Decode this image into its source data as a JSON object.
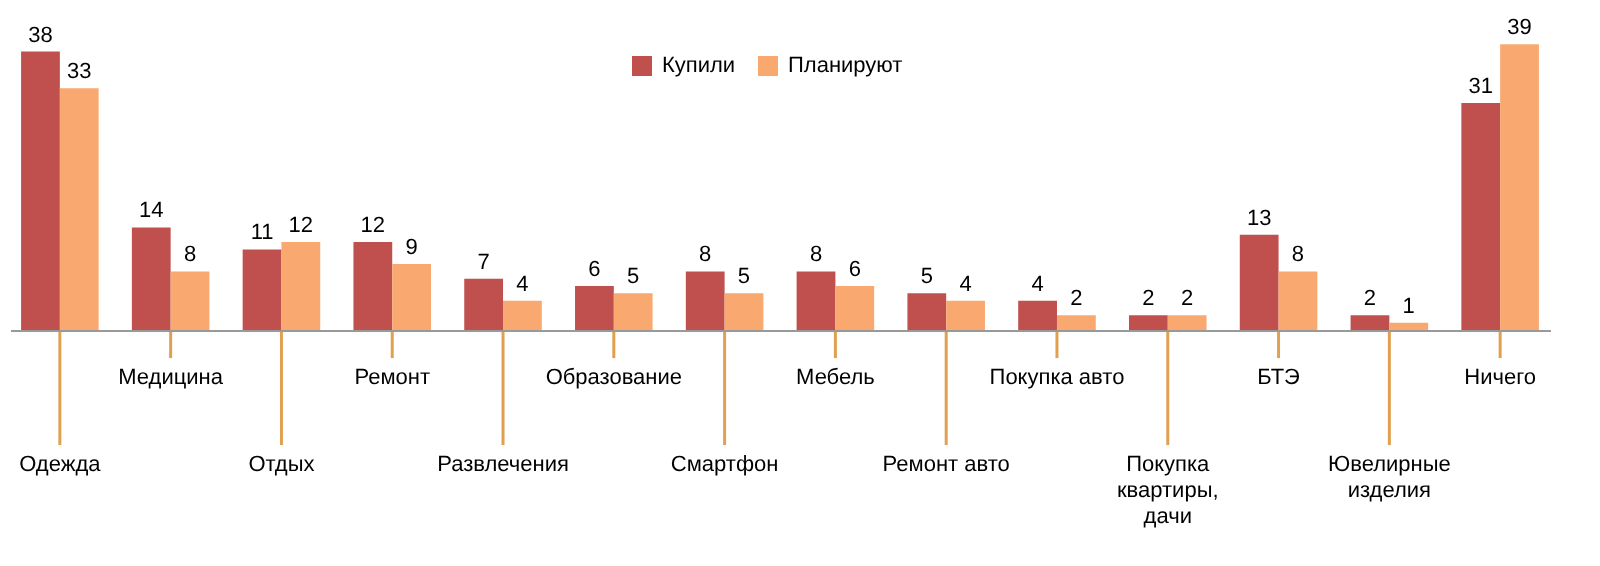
{
  "chart_data": {
    "type": "bar",
    "categories": [
      "Одежда",
      "Медицина",
      "Отдых",
      "Ремонт",
      "Развлечения",
      "Образование",
      "Смартфон",
      "Мебель",
      "Ремонт авто",
      "Покупка авто",
      "Покупка квартиры, дачи",
      "БТЭ",
      "Ювелирные изделия",
      "Ничего"
    ],
    "series": [
      {
        "name": "Купили",
        "color": "#c0504d",
        "values": [
          38,
          14,
          11,
          12,
          7,
          6,
          8,
          8,
          5,
          4,
          2,
          13,
          2,
          31
        ]
      },
      {
        "name": "Планируют",
        "color": "#f9a870",
        "values": [
          33,
          8,
          12,
          9,
          4,
          5,
          5,
          6,
          4,
          2,
          2,
          8,
          1,
          39
        ]
      }
    ],
    "data_labels": true,
    "legend": "top",
    "grid": false
  }
}
